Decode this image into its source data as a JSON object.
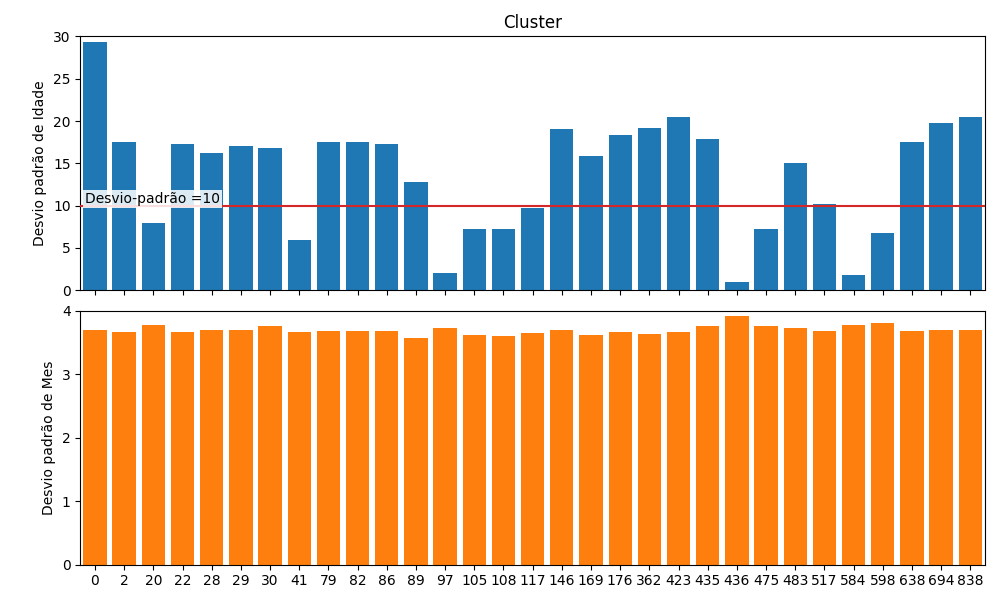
{
  "chart_data": [
    {
      "type": "bar",
      "title": "Cluster",
      "categories": [
        "0",
        "2",
        "20",
        "22",
        "28",
        "29",
        "30",
        "41",
        "79",
        "82",
        "86",
        "89",
        "97",
        "105",
        "108",
        "117",
        "146",
        "169",
        "176",
        "362",
        "423",
        "435",
        "436",
        "475",
        "483",
        "517",
        "584",
        "598",
        "638",
        "694",
        "838"
      ],
      "values": [
        29.3,
        17.5,
        7.9,
        17.3,
        16.2,
        17.1,
        16.8,
        6.0,
        17.5,
        17.5,
        17.3,
        12.8,
        2.1,
        7.2,
        7.3,
        9.7,
        19.1,
        15.9,
        18.3,
        19.2,
        20.5,
        17.9,
        1.0,
        7.2,
        15.0,
        10.2,
        1.8,
        6.8,
        17.5,
        19.8,
        20.5
      ],
      "y_label": "Desvio padrão de Idade",
      "ylim": [
        0,
        30
      ],
      "yticks": [
        0,
        5,
        10,
        15,
        20,
        25,
        30
      ],
      "hline": {
        "value": 10,
        "label": "Desvio-padrão =10"
      },
      "tick_labels": "y",
      "grid": false
    },
    {
      "type": "bar",
      "categories": [
        "0",
        "2",
        "20",
        "22",
        "28",
        "29",
        "30",
        "41",
        "79",
        "82",
        "86",
        "89",
        "97",
        "105",
        "108",
        "117",
        "146",
        "169",
        "176",
        "362",
        "423",
        "435",
        "436",
        "475",
        "483",
        "517",
        "584",
        "598",
        "638",
        "694",
        "838"
      ],
      "values": [
        3.69,
        3.67,
        3.78,
        3.67,
        3.7,
        3.7,
        3.76,
        3.67,
        3.68,
        3.68,
        3.68,
        3.57,
        3.72,
        3.61,
        3.6,
        3.65,
        3.7,
        3.62,
        3.67,
        3.63,
        3.66,
        3.75,
        3.91,
        3.76,
        3.72,
        3.68,
        3.78,
        3.81,
        3.68,
        3.69,
        3.7
      ],
      "y_label": "Desvio padrão de Mes",
      "ylim": [
        0,
        4
      ],
      "yticks": [
        0,
        1,
        2,
        3,
        4
      ],
      "grid": false
    }
  ]
}
